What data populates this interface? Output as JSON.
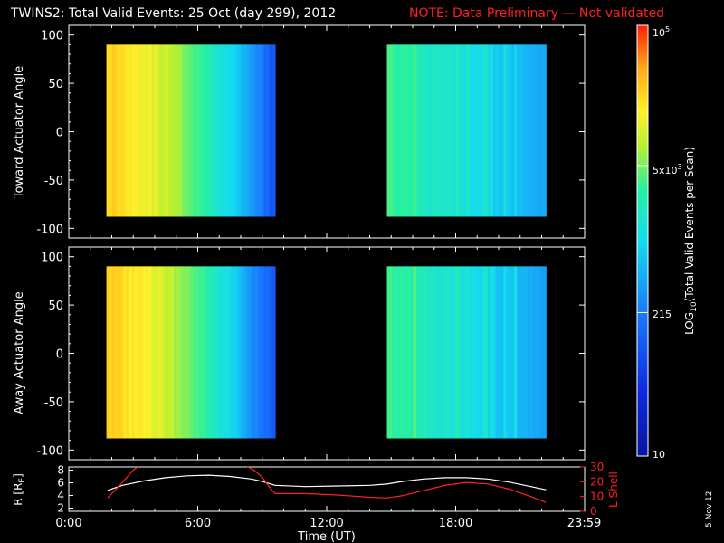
{
  "title": {
    "main": "TWINS2: Total Valid Events: 25 Oct (day 299), 2012",
    "note": "NOTE: Data Preliminary — Not validated"
  },
  "colors": {
    "background": "#000000",
    "axes": "#ffffff",
    "note": "#ff2020",
    "lshell": "#ff2020",
    "radius": "#ffffff"
  },
  "side_stamp": "5 Nov 12",
  "chart_data": [
    {
      "id": "toward",
      "type": "heatmap",
      "ylabel": "Toward Actuator Angle",
      "xlabel": "",
      "ylim": [
        -110,
        110
      ],
      "yticks": [
        "100",
        "50",
        "0",
        "-50",
        "-100"
      ],
      "ytick_values": [
        100,
        50,
        0,
        -50,
        -100
      ],
      "y_extent": [
        -88,
        90
      ],
      "data_blocks": [
        {
          "start_hour": 1.75,
          "end_hour": 9.6
        },
        {
          "start_hour": 14.8,
          "end_hour": 22.2
        }
      ]
    },
    {
      "id": "away",
      "type": "heatmap",
      "ylabel": "Away Actuator Angle",
      "xlabel": "",
      "ylim": [
        -110,
        110
      ],
      "yticks": [
        "100",
        "50",
        "0",
        "-50",
        "-100"
      ],
      "ytick_values": [
        100,
        50,
        0,
        -50,
        -100
      ],
      "y_extent": [
        -88,
        90
      ],
      "data_blocks": [
        {
          "start_hour": 1.75,
          "end_hour": 9.6
        },
        {
          "start_hour": 14.8,
          "end_hour": 22.2
        }
      ]
    },
    {
      "id": "orbit",
      "type": "line",
      "ylabel_left": "R [RE]",
      "ylabel_left_main": "R [R",
      "ylabel_left_sub": "E",
      "ylabel_left_end": "]",
      "ylabel_right": "L Shell",
      "yticks_left": [
        "8",
        "6",
        "4",
        "2"
      ],
      "ytick_left_values": [
        8,
        6,
        4,
        2
      ],
      "ylim_left": [
        1.5,
        8.5
      ],
      "yticks_right": [
        "30",
        "20",
        "10",
        "0"
      ],
      "ytick_right_values": [
        30,
        20,
        10,
        0
      ],
      "ylim_right": [
        0,
        30
      ],
      "xlabel": "Time (UT)",
      "xticks": [
        "0:00",
        "6:00",
        "12:00",
        "18:00",
        "23:59"
      ],
      "xtick_values": [
        0,
        6,
        12,
        18,
        23.98
      ],
      "xlim": [
        0,
        24
      ],
      "series": [
        {
          "axis": "left",
          "x": [
            1.8,
            2.5,
            3.5,
            4.5,
            5.5,
            6.5,
            7.5,
            8.5,
            9.0,
            9.6,
            11,
            12.5,
            14.0,
            14.8,
            15.5,
            16.5,
            17.5,
            18.5,
            19.5,
            20.5,
            21.5,
            22.2
          ],
          "values": [
            4.8,
            5.6,
            6.3,
            6.8,
            7.1,
            7.2,
            7.0,
            6.6,
            6.2,
            5.6,
            5.4,
            5.5,
            5.6,
            5.8,
            6.2,
            6.6,
            6.8,
            6.8,
            6.6,
            6.1,
            5.4,
            4.9
          ]
        },
        {
          "axis": "right",
          "x": [
            1.8,
            2.4,
            3.0,
            3.3,
            8.2,
            8.6,
            9.0,
            9.3,
            9.6,
            11,
            12.5,
            14.0,
            14.8,
            15.5,
            16.5,
            17.5,
            18.5,
            19.5,
            20.5,
            21.5,
            22.2
          ],
          "values": [
            9,
            18,
            28,
            31,
            31,
            28,
            23,
            17,
            12,
            12,
            11,
            9.5,
            9,
            10.5,
            14,
            17.5,
            19.5,
            18.5,
            15,
            10,
            6
          ]
        }
      ]
    }
  ],
  "colorbar": {
    "label_main": "LOG",
    "label_sub": "10",
    "label_rest": "(Total Valid Events per Scan)",
    "scale": "log",
    "range": [
      10,
      100000
    ],
    "tick_top_base": "10",
    "tick_top_exp": "5",
    "tick_top_value": 100000,
    "tick_mid_base": "5x10",
    "tick_mid_exp": "3",
    "tick_mid_value": 5000,
    "tick_215": "215",
    "tick_215_value": 215,
    "tick_bottom": "10",
    "tick_bottom_value": 10
  }
}
